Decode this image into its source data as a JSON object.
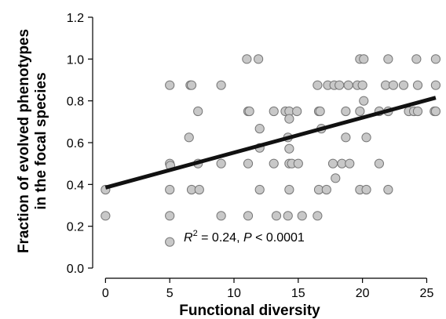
{
  "chart_data": {
    "type": "scatter",
    "xlabel": "Functional diversity",
    "ylabel_lines": [
      "Fraction of evolved phenotypes",
      "in the focal species"
    ],
    "xlim": [
      -1,
      26.5
    ],
    "ylim": [
      0,
      1.2
    ],
    "x_ticks": [
      0,
      5,
      10,
      15,
      20,
      25
    ],
    "y_ticks": [
      0.0,
      0.2,
      0.4,
      0.6,
      0.8,
      1.0,
      1.2
    ],
    "y_tick_labels": [
      "0.0",
      "0.2",
      "0.4",
      "0.6",
      "0.8",
      "1.0",
      "1.2"
    ],
    "grid": false,
    "marker_fill": "#c8c8c8",
    "marker_edge": "#777777",
    "line_color": "#111111",
    "trend_line": {
      "x": [
        0,
        25.7
      ],
      "y": [
        0.385,
        0.815
      ]
    },
    "annotation": {
      "r_symbol": "R",
      "exponent": "2",
      "rest": " = 0.24, ",
      "p_symbol": "P",
      "p_rest": " < 0.0001"
    },
    "points": [
      [
        0,
        0.375
      ],
      [
        0,
        0.25
      ],
      [
        5,
        0.875
      ],
      [
        5,
        0.5
      ],
      [
        5.05,
        0.49
      ],
      [
        5,
        0.375
      ],
      [
        5,
        0.25
      ],
      [
        5,
        0.125
      ],
      [
        6.5,
        0.625
      ],
      [
        6.6,
        0.875
      ],
      [
        6.7,
        0.875
      ],
      [
        6.7,
        0.375
      ],
      [
        7.2,
        0.75
      ],
      [
        7.2,
        0.5
      ],
      [
        7.3,
        0.375
      ],
      [
        9,
        0.875
      ],
      [
        9,
        0.5
      ],
      [
        9,
        0.25
      ],
      [
        11,
        1.0
      ],
      [
        11.1,
        0.75
      ],
      [
        11.2,
        0.75
      ],
      [
        11.1,
        0.5
      ],
      [
        11.1,
        0.25
      ],
      [
        11.9,
        1.0
      ],
      [
        12,
        0.667
      ],
      [
        12,
        0.575
      ],
      [
        12,
        0.375
      ],
      [
        13.1,
        0.75
      ],
      [
        13.1,
        0.5
      ],
      [
        13.3,
        0.25
      ],
      [
        14,
        0.75
      ],
      [
        14.3,
        0.75
      ],
      [
        14.3,
        0.714
      ],
      [
        14.2,
        0.625
      ],
      [
        14.3,
        0.571
      ],
      [
        14.3,
        0.5
      ],
      [
        14.5,
        0.5
      ],
      [
        14.3,
        0.375
      ],
      [
        14.2,
        0.25
      ],
      [
        14.9,
        0.75
      ],
      [
        15,
        0.5
      ],
      [
        15.3,
        0.25
      ],
      [
        16.5,
        0.875
      ],
      [
        16.6,
        0.75
      ],
      [
        16.7,
        0.75
      ],
      [
        16.8,
        0.667
      ],
      [
        16.6,
        0.375
      ],
      [
        16.5,
        0.25
      ],
      [
        17.3,
        0.875
      ],
      [
        17.2,
        0.375
      ],
      [
        17.8,
        0.875
      ],
      [
        17.7,
        0.5
      ],
      [
        17.9,
        0.43
      ],
      [
        18.2,
        0.875
      ],
      [
        18.4,
        0.5
      ],
      [
        18.7,
        0.75
      ],
      [
        18.7,
        0.625
      ],
      [
        18.9,
        0.875
      ],
      [
        19.0,
        0.5
      ],
      [
        19.6,
        0.875
      ],
      [
        19.8,
        1.0
      ],
      [
        19.8,
        0.75
      ],
      [
        19.8,
        0.375
      ],
      [
        20.1,
        1.0
      ],
      [
        20.0,
        0.875
      ],
      [
        20.1,
        0.8
      ],
      [
        20.3,
        0.625
      ],
      [
        20.3,
        0.375
      ],
      [
        21.3,
        0.75
      ],
      [
        21.3,
        0.5
      ],
      [
        21.8,
        0.875
      ],
      [
        22.0,
        1.0
      ],
      [
        22.0,
        0.75
      ],
      [
        22.0,
        0.375
      ],
      [
        22.4,
        0.875
      ],
      [
        23.2,
        0.875
      ],
      [
        23.6,
        0.75
      ],
      [
        24.0,
        0.75
      ],
      [
        24.2,
        1.0
      ],
      [
        24.3,
        0.875
      ],
      [
        24.3,
        0.75
      ],
      [
        25.7,
        1.0
      ],
      [
        25.7,
        0.875
      ],
      [
        25.6,
        0.75
      ],
      [
        25.7,
        0.75
      ]
    ]
  }
}
